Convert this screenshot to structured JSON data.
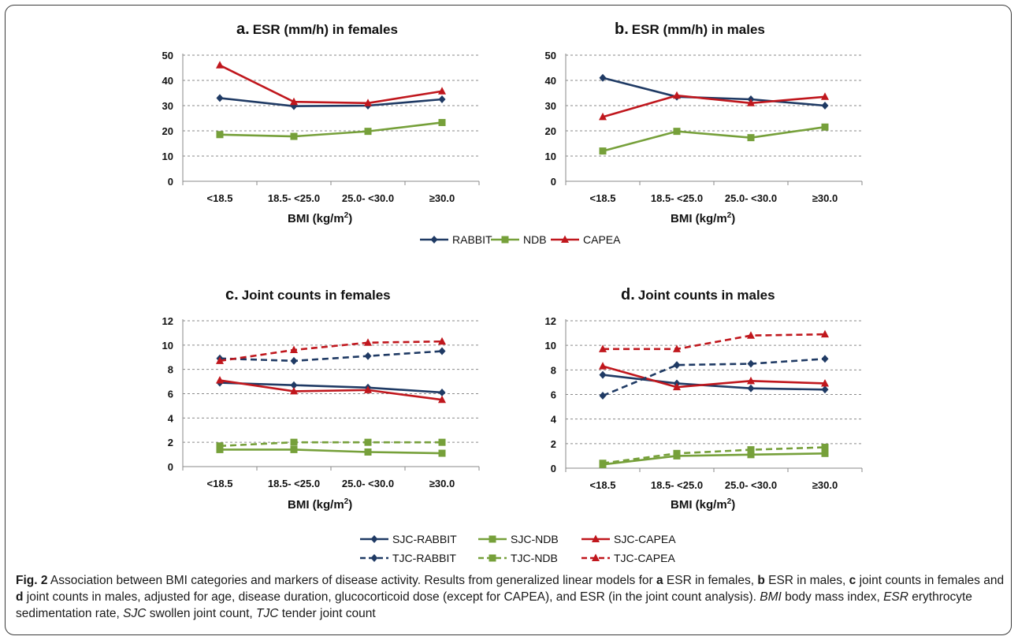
{
  "colors": {
    "RABBIT": "#1f3a64",
    "NDB": "#76a03a",
    "CAPEA": "#c0171d"
  },
  "x_title_prefix": "BMI (kg/m",
  "x_title_sup": "2",
  "x_title_suffix": ")",
  "chart_data": [
    {
      "id": "a",
      "letter": "a.",
      "title": "ESR (mm/h) in females",
      "type": "line",
      "categories": [
        "<18.5",
        "18.5- <25.0",
        "25.0- <30.0",
        "≥30.0"
      ],
      "ylim": [
        0,
        50
      ],
      "yticks": [
        0,
        10,
        20,
        30,
        40,
        50
      ],
      "grid": true,
      "series": [
        {
          "name": "RABBIT",
          "color": "#1f3a64",
          "marker": "diamond",
          "dashed": false,
          "values": [
            33.0,
            29.8,
            30.0,
            32.5
          ]
        },
        {
          "name": "NDB",
          "color": "#76a03a",
          "marker": "square",
          "dashed": false,
          "values": [
            18.5,
            17.8,
            19.8,
            23.3
          ]
        },
        {
          "name": "CAPEA",
          "color": "#c0171d",
          "marker": "triangle",
          "dashed": false,
          "values": [
            46.0,
            31.5,
            31.0,
            35.7
          ]
        }
      ]
    },
    {
      "id": "b",
      "letter": "b.",
      "title": "ESR (mm/h) in males",
      "type": "line",
      "categories": [
        "<18.5",
        "18.5- <25.0",
        "25.0- <30.0",
        "≥30.0"
      ],
      "ylim": [
        0,
        50
      ],
      "yticks": [
        0,
        10,
        20,
        30,
        40,
        50
      ],
      "grid": true,
      "series": [
        {
          "name": "RABBIT",
          "color": "#1f3a64",
          "marker": "diamond",
          "dashed": false,
          "values": [
            41.0,
            33.5,
            32.5,
            30.0
          ]
        },
        {
          "name": "NDB",
          "color": "#76a03a",
          "marker": "square",
          "dashed": false,
          "values": [
            12.0,
            19.8,
            17.3,
            21.5
          ]
        },
        {
          "name": "CAPEA",
          "color": "#c0171d",
          "marker": "triangle",
          "dashed": false,
          "values": [
            25.5,
            34.0,
            31.0,
            33.5
          ]
        }
      ]
    },
    {
      "id": "c",
      "letter": "c.",
      "title": "Joint counts in females",
      "type": "line",
      "categories": [
        "<18.5",
        "18.5- <25.0",
        "25.0- <30.0",
        "≥30.0"
      ],
      "ylim": [
        0,
        12
      ],
      "yticks": [
        0,
        2,
        4,
        6,
        8,
        10,
        12
      ],
      "grid": true,
      "series": [
        {
          "name": "SJC-RABBIT",
          "color": "#1f3a64",
          "marker": "diamond",
          "dashed": false,
          "values": [
            6.9,
            6.7,
            6.5,
            6.1
          ]
        },
        {
          "name": "SJC-NDB",
          "color": "#76a03a",
          "marker": "square",
          "dashed": false,
          "values": [
            1.4,
            1.4,
            1.2,
            1.1
          ]
        },
        {
          "name": "SJC-CAPEA",
          "color": "#c0171d",
          "marker": "triangle",
          "dashed": false,
          "values": [
            7.1,
            6.2,
            6.3,
            5.5
          ]
        },
        {
          "name": "TJC-RABBIT",
          "color": "#1f3a64",
          "marker": "diamond",
          "dashed": true,
          "values": [
            8.9,
            8.7,
            9.1,
            9.5
          ]
        },
        {
          "name": "TJC-NDB",
          "color": "#76a03a",
          "marker": "square",
          "dashed": true,
          "values": [
            1.7,
            2.0,
            2.0,
            2.0
          ]
        },
        {
          "name": "TJC-CAPEA",
          "color": "#c0171d",
          "marker": "triangle",
          "dashed": true,
          "values": [
            8.7,
            9.6,
            10.2,
            10.3
          ]
        }
      ]
    },
    {
      "id": "d",
      "letter": "d.",
      "title": "Joint counts in males",
      "type": "line",
      "categories": [
        "<18.5",
        "18.5- <25.0",
        "25.0- <30.0",
        "≥30.0"
      ],
      "ylim": [
        0,
        12
      ],
      "yticks": [
        0,
        2,
        4,
        6,
        8,
        10,
        12
      ],
      "grid": true,
      "series": [
        {
          "name": "SJC-RABBIT",
          "color": "#1f3a64",
          "marker": "diamond",
          "dashed": false,
          "values": [
            7.6,
            6.9,
            6.5,
            6.4
          ]
        },
        {
          "name": "SJC-NDB",
          "color": "#76a03a",
          "marker": "square",
          "dashed": false,
          "values": [
            0.3,
            1.0,
            1.1,
            1.2
          ]
        },
        {
          "name": "SJC-CAPEA",
          "color": "#c0171d",
          "marker": "triangle",
          "dashed": false,
          "values": [
            8.3,
            6.6,
            7.1,
            6.9
          ]
        },
        {
          "name": "TJC-RABBIT",
          "color": "#1f3a64",
          "marker": "diamond",
          "dashed": true,
          "values": [
            5.9,
            8.4,
            8.5,
            8.9
          ]
        },
        {
          "name": "TJC-NDB",
          "color": "#76a03a",
          "marker": "square",
          "dashed": true,
          "values": [
            0.4,
            1.2,
            1.5,
            1.7
          ]
        },
        {
          "name": "TJC-CAPEA",
          "color": "#c0171d",
          "marker": "triangle",
          "dashed": true,
          "values": [
            9.7,
            9.7,
            10.8,
            10.9
          ]
        }
      ]
    }
  ],
  "legend_top": [
    {
      "name": "RABBIT",
      "color": "#1f3a64",
      "marker": "diamond",
      "dashed": false
    },
    {
      "name": "NDB",
      "color": "#76a03a",
      "marker": "square",
      "dashed": false
    },
    {
      "name": "CAPEA",
      "color": "#c0171d",
      "marker": "triangle",
      "dashed": false
    }
  ],
  "legend_bottom": [
    {
      "name": "SJC-RABBIT",
      "color": "#1f3a64",
      "marker": "diamond",
      "dashed": false
    },
    {
      "name": "SJC-NDB",
      "color": "#76a03a",
      "marker": "square",
      "dashed": false
    },
    {
      "name": "SJC-CAPEA",
      "color": "#c0171d",
      "marker": "triangle",
      "dashed": false
    },
    {
      "name": "TJC-RABBIT",
      "color": "#1f3a64",
      "marker": "diamond",
      "dashed": true
    },
    {
      "name": "TJC-NDB",
      "color": "#76a03a",
      "marker": "square",
      "dashed": true
    },
    {
      "name": "TJC-CAPEA",
      "color": "#c0171d",
      "marker": "triangle",
      "dashed": true
    }
  ],
  "caption": {
    "fig_label": "Fig. 2",
    "t1": " Association between BMI categories and markers of disease activity. Results from generalized linear models for ",
    "a": "a",
    "t2": " ESR in females, ",
    "b": "b",
    "t3": " ESR in males, ",
    "c": "c",
    "t4": " joint counts in females and ",
    "d": "d",
    "t5": " joint counts in males, adjusted for age, disease duration, glucocorticoid dose (except for CAPEA), and ESR (in the joint count analysis). ",
    "bmi_abbr": "BMI",
    "t6": " body mass index, ",
    "esr_abbr": "ESR",
    "t7": " erythrocyte sedimentation rate, ",
    "sjc_abbr": "SJC",
    "t8": " swollen joint count, ",
    "tjc_abbr": "TJC",
    "t9": " tender joint count"
  }
}
